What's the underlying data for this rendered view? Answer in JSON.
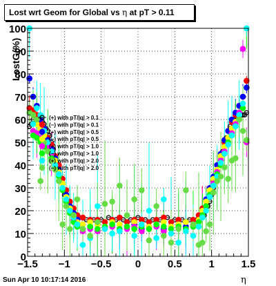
{
  "page": {
    "title_prefix": "Lost wrt Geom for Global vs  ",
    "title_eta": "η",
    "title_suffix": " at pT > 0.11",
    "footer": "Sun Apr 10 10:17:14 2016"
  },
  "chart_data": {
    "type": "scatter",
    "title": "Lost wrt Geom for Global vs  η at pT > 0.11",
    "xlabel": "η",
    "ylabel": "LostG(%)",
    "xlim": [
      -1.5,
      1.5
    ],
    "ylim": [
      0,
      100
    ],
    "x_ticks": [
      -1.5,
      -1,
      -0.5,
      0,
      0.5,
      1,
      1.5
    ],
    "x_tick_labels": [
      "−1.5",
      "−1",
      "−0.5",
      "0",
      "0.5",
      "1",
      "1.5"
    ],
    "y_ticks": [
      0,
      10,
      20,
      30,
      40,
      50,
      60,
      70,
      80,
      90,
      100
    ],
    "y_tick_labels": [
      "0",
      "10",
      "20",
      "30",
      "40",
      "50",
      "60",
      "70",
      "80",
      "90",
      "100"
    ],
    "grid": true,
    "legend_position": "middle-left",
    "series": [
      {
        "name": "(+) with pT/|q| > 0.1",
        "color": "#000000",
        "marker": "open-circle",
        "errors": "x",
        "x": [
          -1.475,
          -1.45,
          -1.425,
          -1.4,
          -1.375,
          -1.35,
          -1.325,
          -1.3,
          -1.275,
          -1.25,
          -1.225,
          -1.2,
          -1.175,
          -1.15,
          -1.125,
          -1.1,
          -1.075,
          -1.05,
          -1.025,
          -1.0,
          -0.975,
          -0.95,
          -0.925,
          -0.9,
          -0.875,
          -0.85,
          -0.825,
          -0.8,
          -0.7,
          -0.6,
          -0.5,
          -0.4,
          -0.3,
          -0.2,
          -0.1,
          0.0,
          0.1,
          0.2,
          0.3,
          0.4,
          0.5,
          0.6,
          0.7,
          0.8,
          0.85,
          0.9,
          0.925,
          0.95,
          0.975,
          1.0,
          1.025,
          1.05,
          1.075,
          1.1,
          1.125,
          1.15,
          1.175,
          1.2,
          1.225,
          1.25,
          1.275,
          1.3,
          1.325,
          1.35,
          1.375,
          1.4,
          1.425,
          1.45,
          1.475
        ],
        "values": [
          57,
          58,
          60,
          62,
          61,
          60,
          60,
          59,
          58,
          56,
          55,
          53,
          50,
          47,
          44,
          40,
          37,
          34,
          30,
          27,
          25,
          23,
          21,
          20,
          19,
          18,
          17,
          17,
          16,
          16,
          16,
          17,
          16,
          16,
          16,
          17,
          16,
          16,
          16,
          17,
          16,
          16,
          16,
          16,
          17,
          18,
          20,
          22,
          24,
          27,
          30,
          33,
          37,
          40,
          43,
          46,
          49,
          52,
          55,
          57,
          59,
          60,
          61,
          61,
          61,
          62,
          62,
          62,
          63
        ]
      },
      {
        "name": "(−) with pT/|q| > 0.1",
        "color": "#ff0000",
        "marker": "circle",
        "x": [
          -1.475,
          -1.425,
          -1.375,
          -1.325,
          -1.275,
          -1.225,
          -1.175,
          -1.125,
          -1.075,
          -1.025,
          -0.975,
          -0.925,
          -0.875,
          -0.825,
          -0.75,
          -0.65,
          -0.55,
          -0.45,
          -0.35,
          -0.25,
          -0.15,
          -0.05,
          0.05,
          0.15,
          0.25,
          0.35,
          0.45,
          0.55,
          0.65,
          0.75,
          0.825,
          0.875,
          0.925,
          0.975,
          1.025,
          1.075,
          1.125,
          1.175,
          1.225,
          1.275,
          1.325,
          1.375,
          1.425,
          1.475
        ],
        "values": [
          65,
          64,
          62,
          59,
          55,
          52,
          49,
          44,
          40,
          34,
          29,
          24,
          21,
          18,
          17,
          16,
          16,
          15,
          16,
          17,
          15,
          16,
          16,
          15,
          16,
          17,
          15,
          16,
          15,
          16,
          18,
          21,
          24,
          29,
          33,
          40,
          44,
          50,
          55,
          59,
          62,
          66,
          70,
          77
        ]
      },
      {
        "name": "(+) with pT/|q| > 0.5",
        "color": "#0000ff",
        "marker": "circle",
        "x": [
          -1.475,
          -1.425,
          -1.375,
          -1.325,
          -1.275,
          -1.225,
          -1.175,
          -1.125,
          -1.075,
          -1.025,
          -0.975,
          -0.925,
          -0.875,
          -0.825,
          -0.75,
          -0.65,
          -0.55,
          -0.45,
          -0.35,
          -0.25,
          -0.15,
          -0.05,
          0.05,
          0.15,
          0.25,
          0.35,
          0.45,
          0.55,
          0.65,
          0.75,
          0.825,
          0.875,
          0.925,
          0.975,
          1.025,
          1.075,
          1.125,
          1.175,
          1.225,
          1.275,
          1.325,
          1.375,
          1.425,
          1.475
        ],
        "values": [
          78,
          70,
          66,
          60,
          56,
          51,
          47,
          43,
          38,
          32,
          27,
          22,
          19,
          16,
          14,
          13,
          14,
          13,
          14,
          12,
          13,
          14,
          12,
          13,
          14,
          12,
          13,
          14,
          13,
          14,
          16,
          20,
          25,
          30,
          35,
          40,
          45,
          51,
          55,
          60,
          63,
          66,
          70,
          74
        ]
      },
      {
        "name": "(−) with pT/|q| > 0.5",
        "color": "#ffff00",
        "marker": "circle",
        "x": [
          -1.475,
          -1.425,
          -1.375,
          -1.325,
          -1.275,
          -1.225,
          -1.175,
          -1.125,
          -1.075,
          -1.025,
          -0.975,
          -0.925,
          -0.875,
          -0.825,
          -0.75,
          -0.65,
          -0.55,
          -0.45,
          -0.35,
          -0.25,
          -0.15,
          -0.05,
          0.05,
          0.15,
          0.25,
          0.35,
          0.45,
          0.55,
          0.65,
          0.75,
          0.825,
          0.875,
          0.925,
          0.975,
          1.025,
          1.075,
          1.125,
          1.175,
          1.225,
          1.275,
          1.325,
          1.375,
          1.425,
          1.475
        ],
        "values": [
          100,
          62,
          58,
          56,
          53,
          50,
          46,
          42,
          37,
          32,
          26,
          21,
          18,
          15,
          14,
          15,
          14,
          13,
          15,
          14,
          13,
          15,
          14,
          13,
          14,
          15,
          13,
          14,
          15,
          14,
          16,
          20,
          24,
          29,
          34,
          38,
          44,
          48,
          52,
          56,
          59,
          62,
          65,
          100
        ]
      },
      {
        "name": "(+) with pT/|q| > 1.0",
        "color": "#ff00ff",
        "marker": "circle",
        "x": [
          -1.475,
          -1.425,
          -1.375,
          -1.325,
          -1.275,
          -1.225,
          -1.175,
          -1.125,
          -1.075,
          -1.025,
          -0.975,
          -0.925,
          -0.875,
          -0.825,
          -0.75,
          -0.65,
          -0.55,
          -0.45,
          -0.35,
          -0.25,
          -0.15,
          -0.05,
          0.05,
          0.15,
          0.25,
          0.35,
          0.45,
          0.55,
          0.65,
          0.75,
          0.825,
          0.875,
          0.925,
          0.975,
          1.025,
          1.075,
          1.125,
          1.175,
          1.225,
          1.275,
          1.325,
          1.375,
          1.425,
          1.475
        ],
        "values": [
          100,
          55,
          54,
          52,
          50,
          48,
          45,
          40,
          36,
          30,
          24,
          19,
          16,
          13,
          11,
          12,
          11,
          12,
          13,
          11,
          12,
          13,
          11,
          12,
          13,
          11,
          12,
          13,
          12,
          13,
          15,
          18,
          22,
          27,
          32,
          37,
          42,
          46,
          50,
          54,
          58,
          63,
          91,
          50
        ]
      },
      {
        "name": "(−) with pT/|q| > 1.0",
        "color": "#00ff00",
        "marker": "circle",
        "x": [
          -1.475,
          -1.425,
          -1.375,
          -1.325,
          -1.275,
          -1.225,
          -1.175,
          -1.125,
          -1.075,
          -1.025,
          -0.975,
          -0.925,
          -0.875,
          -0.825,
          -0.75,
          -0.65,
          -0.55,
          -0.45,
          -0.35,
          -0.25,
          -0.15,
          -0.05,
          0.05,
          0.15,
          0.25,
          0.35,
          0.45,
          0.55,
          0.65,
          0.75,
          0.825,
          0.875,
          0.925,
          0.975,
          1.025,
          1.075,
          1.125,
          1.175,
          1.225,
          1.275,
          1.325,
          1.375,
          1.425,
          1.475
        ],
        "values": [
          100,
          53,
          52,
          50,
          48,
          46,
          43,
          39,
          35,
          29,
          24,
          19,
          15,
          13,
          12,
          13,
          12,
          13,
          14,
          12,
          13,
          12,
          13,
          12,
          14,
          13,
          12,
          13,
          12,
          13,
          15,
          18,
          22,
          27,
          31,
          36,
          40,
          45,
          50,
          53,
          57,
          60,
          65,
          100
        ]
      },
      {
        "name": "(+) with pT/|q| > 2.0",
        "color": "#00ffff",
        "marker": "circle",
        "x": [
          -1.475,
          -1.425,
          -1.375,
          -1.325,
          -1.275,
          -1.225,
          -1.175,
          -1.125,
          -1.075,
          -1.025,
          -0.975,
          -0.925,
          -0.875,
          -0.825,
          -0.75,
          -0.65,
          -0.55,
          -0.45,
          -0.35,
          -0.25,
          -0.15,
          -0.05,
          0.05,
          0.15,
          0.25,
          0.35,
          0.45,
          0.55,
          0.65,
          0.75,
          0.825,
          0.875,
          0.925,
          0.975,
          1.025,
          1.075,
          1.125,
          1.175,
          1.225,
          1.275,
          1.325,
          1.375,
          1.425,
          1.475
        ],
        "values": [
          100,
          58,
          65,
          62,
          55,
          50,
          46,
          40,
          36,
          30,
          25,
          20,
          17,
          14,
          5,
          8,
          22,
          12,
          10,
          11,
          18,
          9,
          14,
          20,
          8,
          25,
          10,
          6,
          11,
          9,
          13,
          17,
          20,
          26,
          31,
          35,
          41,
          45,
          49,
          53,
          57,
          62,
          67,
          100
        ]
      },
      {
        "name": "(−) with pT/|q| > 2.0",
        "color": "#66dd44",
        "marker": "circle",
        "x": [
          -1.475,
          -1.425,
          -1.375,
          -1.325,
          -1.275,
          -1.225,
          -1.175,
          -1.125,
          -1.075,
          -1.025,
          -0.975,
          -0.925,
          -0.875,
          -0.825,
          -0.75,
          -0.65,
          -0.55,
          -0.45,
          -0.35,
          -0.25,
          -0.15,
          -0.05,
          0.05,
          0.15,
          0.25,
          0.35,
          0.45,
          0.55,
          0.65,
          0.75,
          0.825,
          0.875,
          0.925,
          0.975,
          1.025,
          1.075,
          1.125,
          1.175,
          1.225,
          1.275,
          1.325,
          1.375,
          1.425,
          1.475
        ],
        "values": [
          63,
          62,
          60,
          33,
          50,
          46,
          42,
          38,
          33,
          14,
          22,
          12,
          18,
          25,
          12,
          9,
          15,
          23,
          24,
          31,
          18,
          25,
          29,
          7,
          22,
          9,
          6,
          12,
          29,
          14,
          5,
          6,
          11,
          14,
          28,
          33,
          35,
          39,
          34,
          42,
          43,
          60,
          55,
          51
        ]
      }
    ]
  }
}
